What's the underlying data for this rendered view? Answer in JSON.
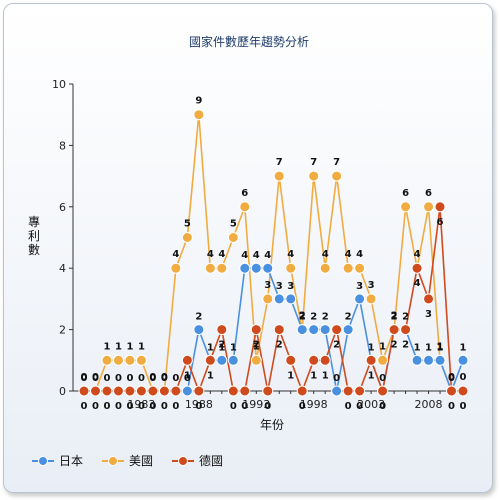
{
  "chart_data": {
    "type": "line",
    "title": "國家件數歷年趨勢分析",
    "xlabel": "年份",
    "ylabel": "專利數",
    "x": [
      1978,
      1979,
      1980,
      1981,
      1982,
      1983,
      1984,
      1985,
      1986,
      1987,
      1988,
      1989,
      1990,
      1991,
      1992,
      1993,
      1994,
      1995,
      1996,
      1997,
      1998,
      1999,
      2000,
      2001,
      2002,
      2003,
      2004,
      2005,
      2006,
      2007,
      2008,
      2009,
      2010,
      2011
    ],
    "xticks": [
      "1983",
      "1988",
      "1993",
      "1998",
      "2003",
      "2008"
    ],
    "ylim": [
      0,
      10
    ],
    "yticks": [
      "0",
      "2",
      "4",
      "6",
      "8",
      "10"
    ],
    "grid": false,
    "legend_position": "bottom-left",
    "series": [
      {
        "name": "日本",
        "color": "#4a90e0",
        "values": [
          0,
          0,
          0,
          0,
          0,
          0,
          0,
          0,
          0,
          0,
          2,
          1,
          1,
          1,
          4,
          4,
          4,
          3,
          3,
          2,
          2,
          2,
          0,
          2,
          3,
          1,
          0,
          2,
          2,
          1,
          1,
          1,
          0,
          1
        ]
      },
      {
        "name": "美國",
        "color": "#f0ac40",
        "values": [
          0,
          0,
          1,
          1,
          1,
          1,
          0,
          0,
          4,
          5,
          9,
          4,
          4,
          5,
          6,
          1,
          3,
          7,
          4,
          2,
          7,
          4,
          7,
          4,
          4,
          3,
          1,
          2,
          6,
          4,
          6,
          1,
          0,
          0
        ]
      },
      {
        "name": "德國",
        "color": "#cf4a1c",
        "values": [
          0,
          0,
          0,
          0,
          0,
          0,
          0,
          0,
          0,
          1,
          0,
          1,
          2,
          0,
          0,
          2,
          0,
          2,
          1,
          0,
          1,
          1,
          2,
          0,
          0,
          1,
          0,
          2,
          2,
          4,
          3,
          6,
          0,
          0
        ]
      }
    ]
  }
}
